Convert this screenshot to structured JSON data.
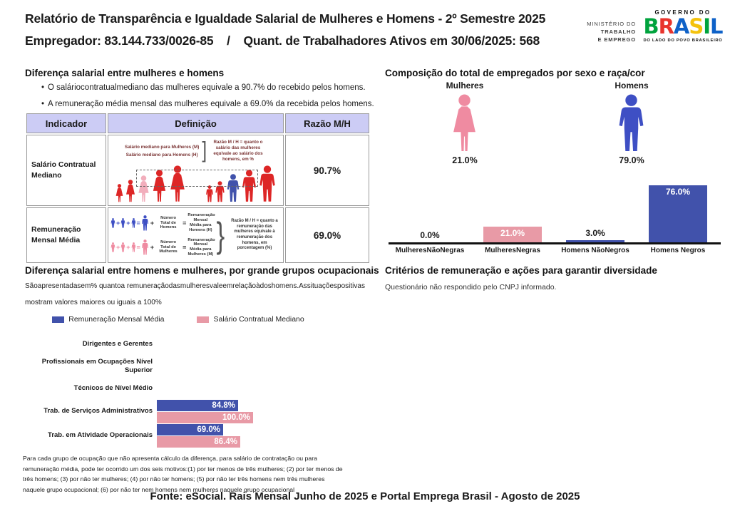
{
  "header": {
    "title": "Relatório de Transparência e Igualdade Salarial de Mulheres e Homens - 2º Semestre 2025",
    "employer": "Empregador: 83.144.733/0026-85",
    "separator": "/",
    "active_workers": "Quant. de Trabalhadores Ativos em 30/06/2025: 568",
    "ministry": {
      "line1": "MINISTÉRIO DO",
      "line2": "TRABALHO",
      "line3": "E EMPREGO"
    },
    "gov_logo": {
      "top": "GOVERNO DO",
      "brand": "BRASIL",
      "bottom": "DO LADO DO POVO BRASILEIRO"
    }
  },
  "salary_diff_section": {
    "title": "Diferença salarial entre mulheres e homens",
    "bullets": [
      "O saláriocontratualmediano das mulheres equivale a 90.7% do recebido pelos homens.",
      "A remuneração média mensal das mulheres equivale a 69.0% da recebida pelos homens."
    ],
    "table": {
      "headers": [
        "Indicador",
        "Definição",
        "Razão M/H"
      ],
      "rows": [
        {
          "indicator": "Salário Contratual Mediano",
          "ratio": "90.7%",
          "def_line1": "Salário mediano para Mulheres (M)",
          "def_line2": "Salário mediano para Homens (H)",
          "note": "Razão M / H = quanto o salário das mulheres equivale ao salário dos homens, em %"
        },
        {
          "indicator": "Remuneração Mensal Média",
          "ratio": "69.0%",
          "men_count_label": "Número Total de Homens",
          "men_result_label": "Remuneração Mensal Média para Homens (H)",
          "women_count_label": "Número Total de Mulheres",
          "women_result_label": "Remuneração Mensal Média para Mulheres (M)",
          "note": "Razão M / H = quanto a remuneração das mulheres equivale à remuneração dos homens, em porcentagem (%)"
        }
      ]
    }
  },
  "composition_section": {
    "title": "Composição do total de empregados por sexo e raça/cor",
    "female_label": "Mulheres",
    "female_pct": "21.0%",
    "male_label": "Homens",
    "male_pct": "79.0%"
  },
  "occupational_section": {
    "title": "Diferença salarial entre homens e mulheres, por grande grupos ocupacionais",
    "subtitle_line1": "Sãoapresentadasem% quantoa remuneraçãodasmulheresvaleemrelaçãoàdoshomens.Assituaçõespositivas",
    "subtitle_line2": "mostram valores maiores ou iguais a 100%",
    "footnote": "Para cada grupo de ocupação que não apresenta cálculo da diferença, para salário de contratação ou para remuneração média, pode ter ocorrido um dos seis motivos:(1) por ter menos de três mulheres; (2) por ter menos de três homens; (3) por não ter mulheres; (4) por não ter homens; (5) por não ter três homens nem três mulheres naquele grupo ocupacional; (6) por não ter nem homens nem mulheres naquele grupo ocupacional"
  },
  "criteria_section": {
    "title": "Critérios de remuneração e ações para garantir diversidade",
    "text": "Questionário não respondido pelo CNPJ informado."
  },
  "footer": "Fonte: eSocial. Rais Mensal Junho de 2025 e Portal Emprega Brasil - Agosto de 2025",
  "chart_data": [
    {
      "type": "bar",
      "title": "Composição do total de empregados por sexo e raça/cor",
      "categories": [
        "MulheresNãoNegras",
        "MulheresNegras",
        "Homens NãoNegros",
        "Homens Negros"
      ],
      "values": [
        0.0,
        21.0,
        3.0,
        76.0
      ],
      "labels": [
        "0.0%",
        "21.0%",
        "3.0%",
        "76.0%"
      ],
      "colors": [
        "#e89aa6",
        "#e89aa6",
        "#4152ab",
        "#4152ab"
      ],
      "ylim": [
        0,
        80
      ],
      "grid": false,
      "annotations": {
        "female_total_pct": 21.0,
        "male_total_pct": 79.0
      }
    },
    {
      "type": "bar",
      "orientation": "horizontal",
      "title": "Diferença salarial entre homens e mulheres, por grande grupos ocupacionais",
      "categories": [
        "Dirigentes e Gerentes",
        "Profissionais em Ocupações Nível Superior",
        "Técnicos de Nível Médio",
        "Trab. de Serviços Administrativos",
        "Trab. em Atividade Operacionais"
      ],
      "series": [
        {
          "name": "Remuneração Mensal Média",
          "color": "#4152ab",
          "values": [
            null,
            null,
            null,
            84.8,
            69.0
          ],
          "labels": [
            null,
            null,
            null,
            "84.8%",
            "69.0%"
          ]
        },
        {
          "name": "Salário Contratual Mediano",
          "color": "#e89aa6",
          "values": [
            null,
            null,
            null,
            100.0,
            86.4
          ],
          "labels": [
            null,
            null,
            null,
            "100.0%",
            "86.4%"
          ]
        }
      ],
      "xlim": [
        0,
        100
      ],
      "legend_position": "top"
    }
  ],
  "colors": {
    "blue_bar": "#4152ab",
    "pink_bar": "#e89aa6",
    "male_icon_blue": "#3e4fc4",
    "female_icon_pink": "#ef8ba1",
    "red_figure": "#dd2626",
    "light_pink_figure": "#f2aebc",
    "table_header_bg": "#ccccf5"
  }
}
